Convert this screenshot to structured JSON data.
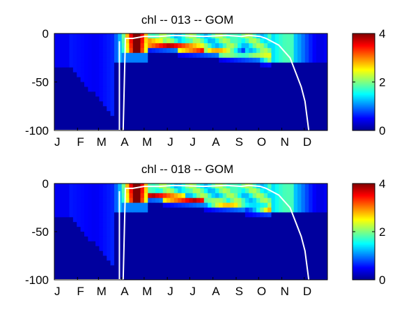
{
  "chart_data": [
    {
      "type": "heatmap",
      "title": "chl -- 013 -- GOM",
      "xlabel": "",
      "ylabel": "",
      "x_tick_labels": [
        "J",
        "F",
        "M",
        "A",
        "M",
        "J",
        "J",
        "A",
        "S",
        "O",
        "N",
        "D"
      ],
      "y_ticks": [
        0,
        -50,
        -100
      ],
      "y_tick_labels": [
        "0",
        "-50",
        "-100"
      ],
      "ylim": [
        -100,
        0
      ],
      "colorbar": {
        "range": [
          0,
          4
        ],
        "ticks": [
          0,
          2,
          4
        ],
        "tick_labels": [
          "0",
          "2",
          "4"
        ],
        "colormap": "jet"
      },
      "bloom": {
        "start_day": 88,
        "peak_day": 110,
        "peak_value": 4.5
      },
      "mixed_layer_depth_days": [
        0,
        92,
        95,
        105,
        120,
        140,
        160,
        200,
        230,
        250,
        260,
        275,
        283,
        300,
        315,
        320,
        330,
        335,
        340
      ],
      "mixed_layer_depth_values": [
        -100,
        -100,
        -5,
        -5,
        -3,
        -3,
        -2,
        -3,
        -2,
        -3,
        -2,
        -3,
        -5,
        -12,
        -25,
        -35,
        -55,
        -70,
        -100
      ]
    },
    {
      "type": "heatmap",
      "title": "chl -- 018 -- GOM",
      "xlabel": "",
      "ylabel": "",
      "x_tick_labels": [
        "J",
        "F",
        "M",
        "A",
        "M",
        "J",
        "J",
        "A",
        "S",
        "O",
        "N",
        "D"
      ],
      "y_ticks": [
        0,
        -50,
        -100
      ],
      "y_tick_labels": [
        "0",
        "-50",
        "-100"
      ],
      "ylim": [
        -100,
        0
      ],
      "colorbar": {
        "range": [
          0,
          4
        ],
        "ticks": [
          0,
          2,
          4
        ],
        "tick_labels": [
          "0",
          "2",
          "4"
        ],
        "colormap": "jet"
      },
      "bloom": {
        "start_day": 88,
        "peak_day": 110,
        "peak_value": 4.5
      },
      "mixed_layer_depth_days": [
        0,
        92,
        95,
        105,
        120,
        140,
        160,
        200,
        230,
        250,
        260,
        275,
        283,
        300,
        315,
        320,
        330,
        335,
        340
      ],
      "mixed_layer_depth_values": [
        -100,
        -100,
        -5,
        -5,
        -3,
        -3,
        -2,
        -3,
        -2,
        -3,
        -2,
        -3,
        -5,
        -12,
        -25,
        -35,
        -55,
        -70,
        -100
      ]
    }
  ]
}
